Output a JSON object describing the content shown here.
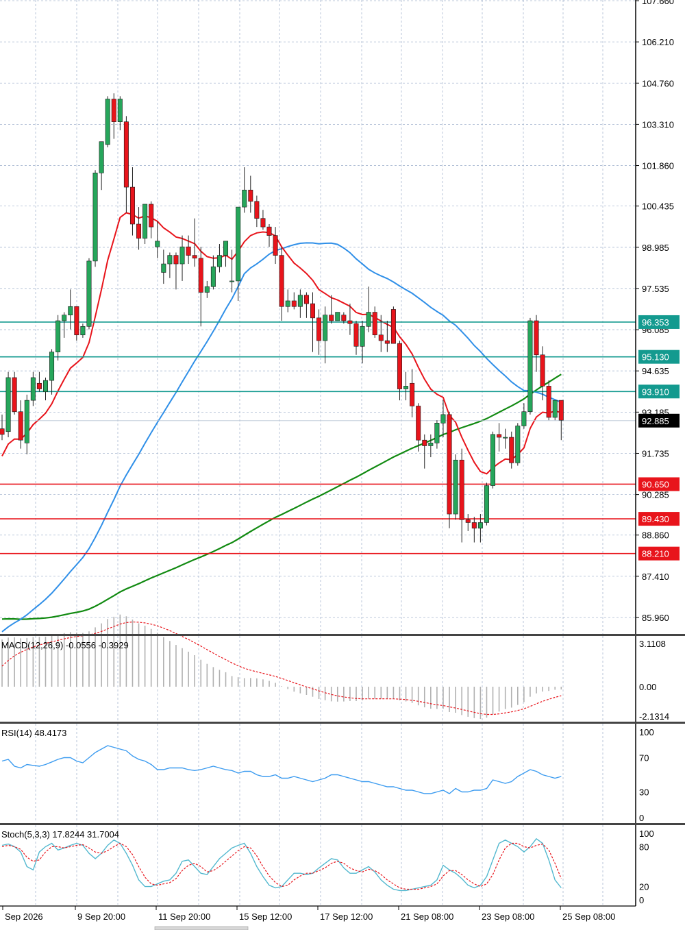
{
  "chart_data": {
    "type": "candlestick",
    "main": {
      "price_axis_ticks": [
        "107.660",
        "106.210",
        "104.760",
        "103.310",
        "101.860",
        "100.435",
        "98.985",
        "97.535",
        "96.085",
        "94.635",
        "93.185",
        "91.735",
        "90.285",
        "88.860",
        "87.410",
        "85.960"
      ],
      "price_axis_values": [
        107.66,
        106.21,
        104.76,
        103.31,
        101.86,
        100.435,
        98.985,
        97.535,
        96.085,
        94.635,
        93.185,
        91.735,
        90.285,
        88.86,
        87.41,
        85.96
      ],
      "current_price": "92.885",
      "horizontal_levels": [
        {
          "label": "96.353",
          "value": 96.353,
          "color": "#139a8f"
        },
        {
          "label": "95.130",
          "value": 95.13,
          "color": "#139a8f"
        },
        {
          "label": "93.910",
          "value": 93.91,
          "color": "#139a8f"
        },
        {
          "label": "90.650",
          "value": 90.65,
          "color": "#e8141b"
        },
        {
          "label": "89.430",
          "value": 89.43,
          "color": "#e8141b"
        },
        {
          "label": "88.210",
          "value": 88.21,
          "color": "#e8141b"
        }
      ],
      "candles": [
        [
          92.6,
          93.1,
          92.2,
          92.4
        ],
        [
          92.5,
          94.6,
          92.3,
          94.4
        ],
        [
          94.4,
          94.6,
          93.1,
          93.2
        ],
        [
          93.2,
          93.6,
          91.9,
          92.2
        ],
        [
          92.1,
          93.8,
          91.7,
          93.6
        ],
        [
          93.6,
          94.6,
          93.4,
          94.4
        ],
        [
          94.2,
          94.6,
          93.9,
          94.0
        ],
        [
          93.9,
          94.4,
          93.6,
          94.3
        ],
        [
          94.3,
          95.4,
          93.8,
          95.3
        ],
        [
          95.3,
          96.6,
          95.0,
          96.4
        ],
        [
          96.4,
          96.7,
          95.8,
          96.6
        ],
        [
          96.6,
          97.5,
          96.1,
          96.9
        ],
        [
          96.9,
          96.9,
          95.7,
          95.9
        ],
        [
          95.9,
          96.3,
          95.8,
          96.2
        ],
        [
          96.2,
          98.6,
          96.1,
          98.5
        ],
        [
          98.5,
          101.7,
          98.3,
          101.6
        ],
        [
          101.6,
          102.7,
          101.0,
          102.7
        ],
        [
          102.6,
          104.3,
          102.5,
          104.2
        ],
        [
          104.2,
          104.4,
          102.8,
          103.4
        ],
        [
          103.4,
          104.3,
          103.1,
          104.2
        ],
        [
          103.4,
          103.6,
          100.2,
          101.1
        ],
        [
          101.1,
          101.8,
          99.4,
          99.8
        ],
        [
          99.8,
          100.4,
          98.9,
          99.3
        ],
        [
          99.3,
          100.5,
          99.1,
          100.5
        ],
        [
          100.5,
          100.6,
          99.3,
          99.7
        ],
        [
          99.0,
          99.9,
          98.6,
          99.2
        ],
        [
          98.1,
          98.9,
          97.7,
          98.4
        ],
        [
          98.4,
          98.8,
          97.9,
          98.7
        ],
        [
          98.7,
          98.8,
          97.5,
          98.4
        ],
        [
          98.4,
          99.4,
          97.8,
          99.0
        ],
        [
          99.0,
          99.4,
          98.4,
          98.7
        ],
        [
          98.7,
          100.0,
          98.3,
          98.6
        ],
        [
          98.6,
          99.0,
          96.2,
          97.4
        ],
        [
          97.4,
          97.8,
          97.2,
          97.6
        ],
        [
          97.6,
          98.7,
          97.5,
          98.3
        ],
        [
          98.3,
          99.1,
          98.1,
          98.7
        ],
        [
          98.7,
          99.1,
          98.3,
          99.2
        ],
        [
          97.8,
          98.9,
          97.4,
          97.8
        ],
        [
          97.8,
          100.4,
          97.1,
          100.4
        ],
        [
          100.4,
          101.8,
          100.2,
          101.0
        ],
        [
          101.0,
          101.5,
          100.2,
          100.6
        ],
        [
          100.6,
          100.8,
          99.7,
          100.0
        ],
        [
          100.0,
          100.3,
          99.6,
          99.7
        ],
        [
          99.7,
          99.8,
          99.0,
          99.4
        ],
        [
          99.4,
          99.7,
          98.4,
          98.7
        ],
        [
          98.7,
          99.0,
          96.4,
          96.9
        ],
        [
          96.9,
          97.5,
          96.7,
          97.1
        ],
        [
          97.1,
          97.4,
          96.8,
          96.9
        ],
        [
          96.9,
          97.5,
          96.5,
          97.3
        ],
        [
          97.3,
          97.4,
          96.5,
          97.0
        ],
        [
          97.0,
          97.4,
          95.3,
          96.5
        ],
        [
          96.5,
          96.8,
          95.2,
          95.7
        ],
        [
          95.7,
          96.9,
          94.9,
          96.6
        ],
        [
          96.6,
          97.3,
          96.3,
          96.4
        ],
        [
          96.4,
          96.6,
          96.4,
          96.7
        ],
        [
          96.6,
          96.7,
          96.3,
          96.4
        ],
        [
          96.4,
          97.0,
          95.9,
          96.3
        ],
        [
          96.3,
          96.4,
          95.2,
          95.5
        ],
        [
          95.5,
          96.4,
          94.9,
          96.2
        ],
        [
          96.2,
          97.6,
          96.0,
          96.7
        ],
        [
          96.7,
          96.9,
          95.8,
          95.9
        ],
        [
          95.9,
          96.6,
          95.3,
          95.7
        ],
        [
          95.7,
          96.4,
          95.3,
          95.6
        ],
        [
          96.8,
          96.9,
          95.6,
          95.6
        ],
        [
          95.6,
          95.7,
          93.6,
          94.0
        ],
        [
          94.0,
          94.6,
          93.6,
          94.1
        ],
        [
          94.2,
          94.7,
          93.0,
          93.4
        ],
        [
          93.4,
          93.5,
          91.8,
          92.2
        ],
        [
          92.2,
          92.4,
          91.2,
          92.0
        ],
        [
          92.0,
          92.4,
          91.6,
          92.1
        ],
        [
          92.1,
          92.9,
          91.9,
          92.8
        ],
        [
          92.8,
          93.6,
          92.3,
          93.1
        ],
        [
          93.1,
          93.2,
          89.1,
          89.6
        ],
        [
          89.6,
          91.7,
          89.4,
          91.5
        ],
        [
          91.5,
          91.9,
          88.6,
          89.4
        ],
        [
          89.4,
          89.6,
          89.0,
          89.3
        ],
        [
          89.3,
          89.5,
          88.6,
          89.1
        ],
        [
          89.1,
          89.6,
          88.6,
          89.3
        ],
        [
          89.3,
          90.7,
          89.2,
          90.6
        ],
        [
          90.6,
          92.5,
          90.5,
          92.4
        ],
        [
          92.4,
          92.8,
          91.8,
          92.3
        ],
        [
          92.3,
          92.6,
          91.9,
          92.3
        ],
        [
          92.3,
          92.5,
          91.2,
          91.4
        ],
        [
          91.4,
          92.8,
          91.3,
          92.7
        ],
        [
          92.7,
          93.5,
          92.6,
          93.2
        ],
        [
          93.2,
          96.5,
          93.1,
          96.4
        ],
        [
          96.4,
          96.6,
          94.6,
          95.2
        ],
        [
          95.2,
          95.5,
          93.6,
          94.1
        ],
        [
          94.1,
          94.3,
          92.9,
          93.0
        ],
        [
          93.0,
          93.6,
          92.9,
          93.6
        ],
        [
          93.6,
          93.6,
          92.2,
          92.9
        ]
      ]
    },
    "macd": {
      "title": "MACD(12,26,9) -0.0556 -0.3929",
      "axis_ticks": [
        "3.1108",
        "0.00",
        "-2.1314"
      ],
      "axis_values": [
        3.1108,
        0.0,
        -2.1314
      ]
    },
    "rsi": {
      "title": "RSI(14) 48.4173",
      "axis_ticks": [
        "100",
        "70",
        "30",
        "0"
      ],
      "axis_values": [
        100,
        70,
        30,
        0
      ],
      "values": [
        66,
        68,
        60,
        58,
        62,
        61,
        60,
        62,
        65,
        68,
        70,
        70,
        66,
        64,
        70,
        76,
        80,
        84,
        82,
        80,
        78,
        72,
        68,
        66,
        62,
        56,
        56,
        58,
        58,
        58,
        56,
        55,
        56,
        58,
        60,
        58,
        56,
        55,
        52,
        54,
        54,
        50,
        48,
        48,
        50,
        46,
        46,
        48,
        46,
        44,
        42,
        44,
        46,
        50,
        50,
        48,
        46,
        44,
        42,
        42,
        40,
        38,
        36,
        36,
        34,
        32,
        32,
        30,
        28,
        28,
        30,
        32,
        28,
        34,
        30,
        30,
        32,
        32,
        34,
        44,
        42,
        40,
        42,
        48,
        52,
        56,
        54,
        50,
        48,
        46,
        48
      ]
    },
    "stoch": {
      "title": "Stoch(5,3,3) 17.8244 31.7004",
      "axis_ticks": [
        "100",
        "80",
        "20",
        "0"
      ],
      "axis_values": [
        100,
        80,
        20,
        0
      ],
      "k_values": [
        82,
        84,
        80,
        72,
        50,
        45,
        72,
        80,
        85,
        75,
        78,
        82,
        85,
        82,
        70,
        62,
        70,
        82,
        90,
        85,
        70,
        52,
        30,
        20,
        20,
        24,
        28,
        30,
        40,
        58,
        60,
        50,
        40,
        38,
        50,
        62,
        70,
        78,
        82,
        85,
        70,
        50,
        35,
        22,
        18,
        20,
        30,
        40,
        40,
        38,
        40,
        48,
        55,
        62,
        60,
        48,
        40,
        40,
        45,
        50,
        42,
        30,
        22,
        16,
        14,
        14,
        16,
        18,
        20,
        22,
        30,
        52,
        45,
        40,
        32,
        22,
        18,
        22,
        35,
        60,
        85,
        90,
        85,
        80,
        72,
        80,
        92,
        85,
        60,
        30,
        18
      ],
      "d_values": [
        80,
        82,
        80,
        76,
        64,
        58,
        60,
        72,
        80,
        80,
        78,
        80,
        82,
        83,
        78,
        72,
        70,
        74,
        80,
        85,
        80,
        68,
        50,
        34,
        24,
        22,
        24,
        26,
        32,
        44,
        52,
        55,
        50,
        42,
        44,
        50,
        58,
        66,
        74,
        80,
        78,
        66,
        50,
        36,
        26,
        20,
        22,
        30,
        36,
        40,
        40,
        44,
        48,
        55,
        58,
        55,
        48,
        44,
        42,
        46,
        44,
        38,
        30,
        24,
        18,
        16,
        16,
        16,
        18,
        20,
        24,
        36,
        44,
        44,
        38,
        30,
        24,
        20,
        24,
        38,
        60,
        78,
        85,
        85,
        80,
        78,
        82,
        84,
        75,
        55,
        32
      ]
    },
    "time_axis_labels": [
      "Sep 2026",
      "9 Sep 20:00",
      "11 Sep 20:00",
      "15 Sep 12:00",
      "17 Sep 12:00",
      "21 Sep 08:00",
      "23 Sep 08:00",
      "25 Sep 08:00"
    ],
    "colors": {
      "bull": "#26a65b",
      "bear": "#e8141b",
      "ma_fast": "#e8141b",
      "ma_mid": "#2f8fe8",
      "ma_slow": "#118a11",
      "rsi": "#3d9cf0",
      "stoch_k": "#52b8cf",
      "stoch_d": "#e8141b",
      "grid": "#a8b8d0"
    }
  }
}
